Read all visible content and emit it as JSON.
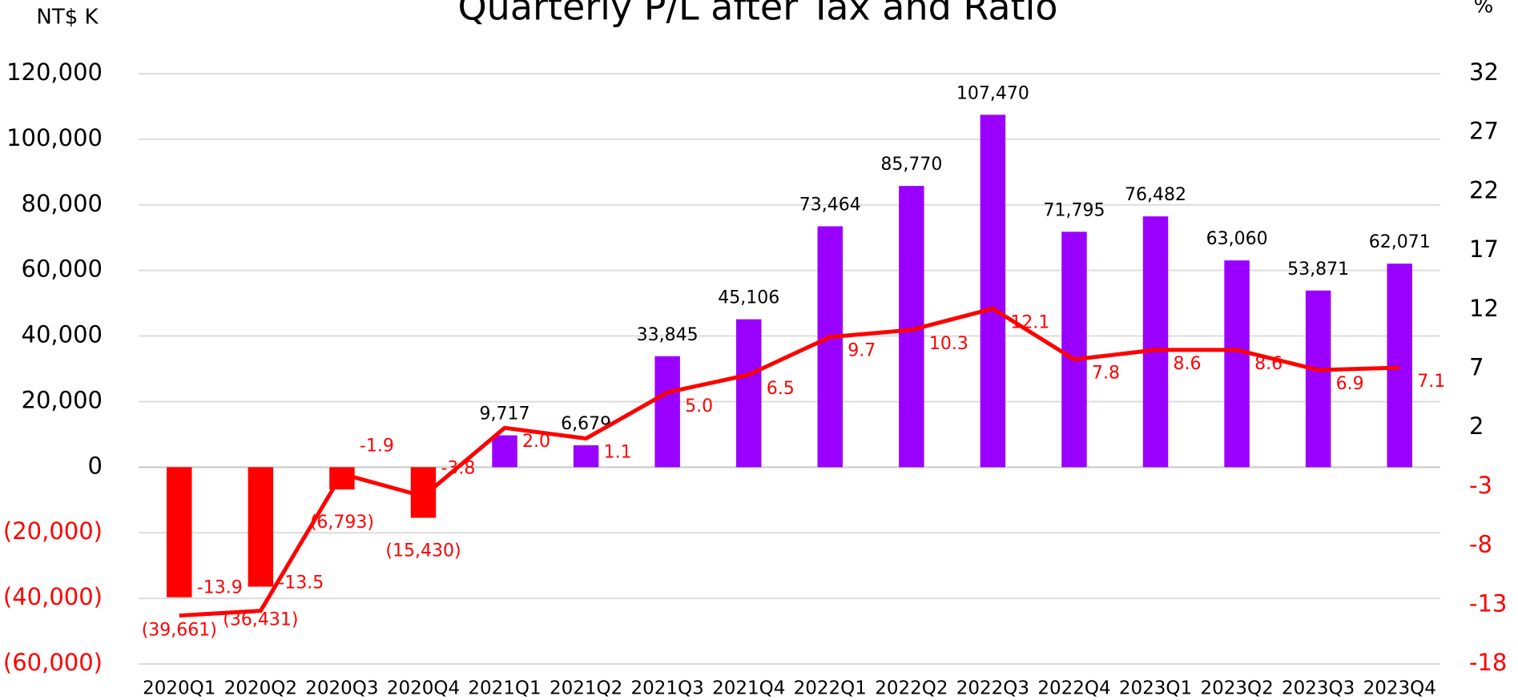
{
  "chart_data": {
    "type": "bar_line",
    "title": "Quarterly P/L after Tax and Ratio",
    "y_label": "NT$ K",
    "y2_label": "%",
    "categories": [
      "2020Q1",
      "2020Q2",
      "2020Q3",
      "2020Q4",
      "2021Q1",
      "2021Q2",
      "2021Q3",
      "2021Q4",
      "2022Q1",
      "2022Q2",
      "2022Q3",
      "2022Q4",
      "2023Q1",
      "2023Q2",
      "2023Q3",
      "2023Q4"
    ],
    "series": [
      {
        "type": "bar",
        "color": "#9900ff",
        "negative_color": "#ff0000",
        "values": [
          -39661,
          -36431,
          -6793,
          -15430,
          9717,
          6679,
          33845,
          45106,
          73464,
          85770,
          107470,
          71795,
          76482,
          63060,
          53871,
          62071
        ],
        "value_labels": [
          "(39,661)",
          "(36,431)",
          "(6,793)",
          "(15,430)",
          "9,717",
          "6,679",
          "33,845",
          "45,106",
          "73,464",
          "85,770",
          "107,470",
          "71,795",
          "76,482",
          "63,060",
          "53,871",
          "62,071"
        ]
      },
      {
        "type": "line",
        "axis": "y2",
        "color": "#ff0000",
        "values": [
          -13.9,
          -13.5,
          -1.9,
          -3.8,
          2.0,
          1.1,
          5.0,
          6.5,
          9.7,
          10.3,
          12.1,
          7.8,
          8.6,
          8.6,
          6.9,
          7.1
        ],
        "value_labels": [
          "-13.9",
          "-13.5",
          "-1.9",
          "-3.8",
          "2.0",
          "1.1",
          "5.0",
          "6.5",
          "9.7",
          "10.3",
          "12.1",
          "7.8",
          "8.6",
          "8.6",
          "6.9",
          "7.1"
        ]
      }
    ],
    "ylim": [
      -60000,
      120000
    ],
    "yticks": [
      {
        "value": -60000,
        "label": "(60,000)"
      },
      {
        "value": -40000,
        "label": "(40,000)"
      },
      {
        "value": -20000,
        "label": "(20,000)"
      },
      0,
      {
        "value": 20000,
        "label": "20,000"
      },
      {
        "value": 40000,
        "label": "40,000"
      },
      {
        "value": 60000,
        "label": "60,000"
      },
      {
        "value": 80000,
        "label": "80,000"
      },
      {
        "value": 100000,
        "label": "100,000"
      },
      {
        "value": 120000,
        "label": "120,000"
      }
    ],
    "y2lim": [
      -18,
      32
    ],
    "y2ticks": [
      -18,
      -13,
      -8,
      -3,
      2,
      7,
      12,
      17,
      22,
      27,
      32
    ],
    "grid": true
  }
}
